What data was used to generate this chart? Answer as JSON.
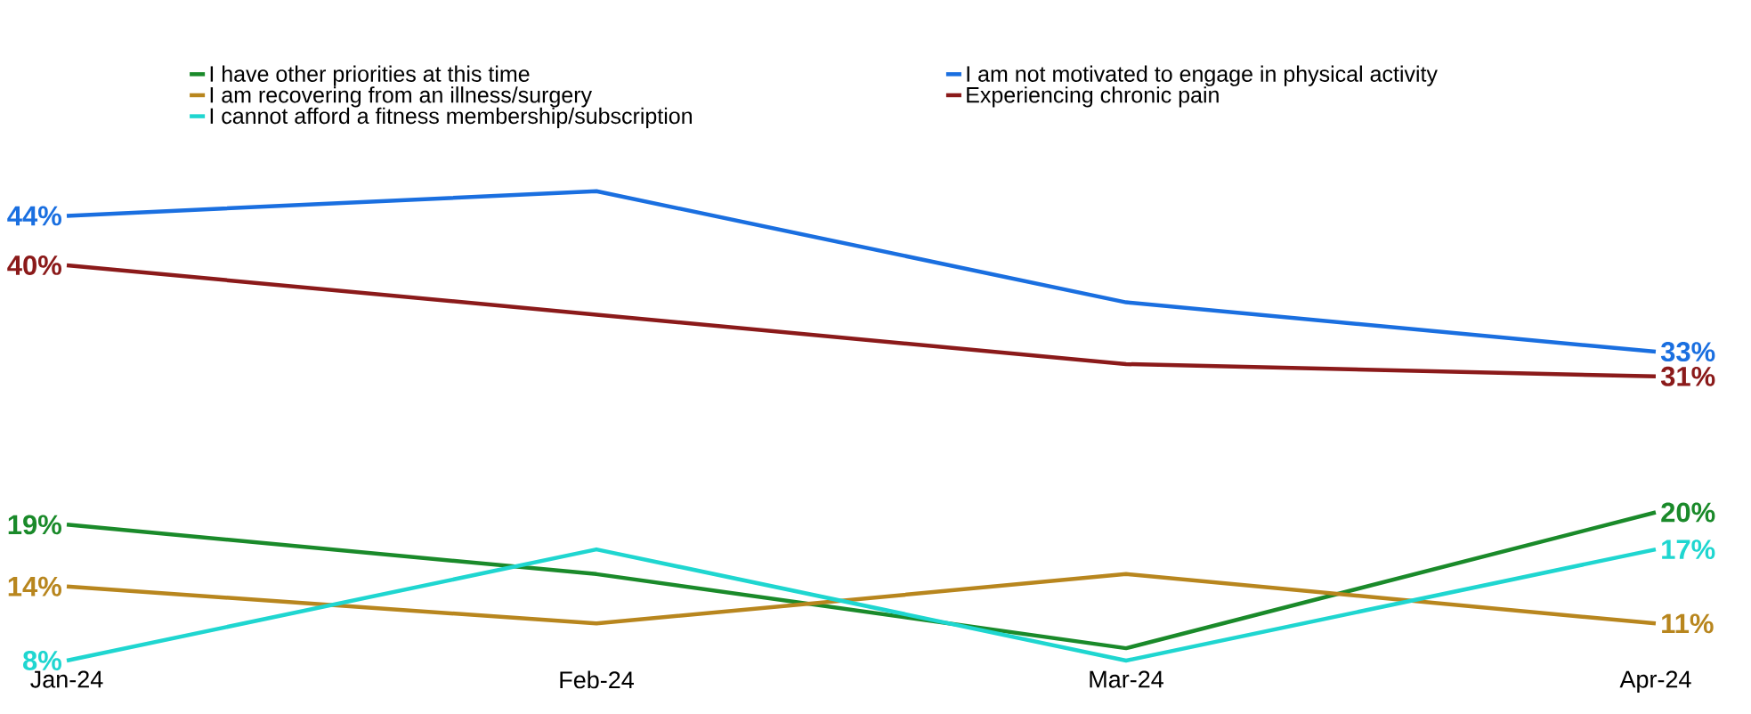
{
  "chart_data": {
    "type": "line",
    "categories": [
      "Jan-24",
      "Feb-24",
      "Mar-24",
      "Apr-24"
    ],
    "series": [
      {
        "name": "I have other priorities at this time",
        "color": "#1a8a2a",
        "values": [
          19,
          15,
          9,
          20
        ],
        "value_labels": [
          "19%",
          null,
          null,
          "20%"
        ]
      },
      {
        "name": "I am not motivated to engage in physical activity",
        "color": "#1a6fe0",
        "values": [
          44,
          46,
          37,
          33
        ],
        "value_labels": [
          "44%",
          null,
          null,
          "33%"
        ]
      },
      {
        "name": "I am recovering from an illness/surgery",
        "color": "#b8861e",
        "values": [
          14,
          11,
          15,
          11
        ],
        "value_labels": [
          "14%",
          null,
          null,
          "11%"
        ]
      },
      {
        "name": "Experiencing chronic pain",
        "color": "#8b1a1a",
        "values": [
          40,
          36,
          32,
          31
        ],
        "value_labels": [
          "40%",
          null,
          null,
          "31%"
        ]
      },
      {
        "name": "I cannot afford a fitness membership/subscription",
        "color": "#1fd6d0",
        "values": [
          8,
          17,
          8,
          17
        ],
        "value_labels": [
          "8%",
          null,
          null,
          "17%"
        ]
      }
    ],
    "legend": "top"
  }
}
